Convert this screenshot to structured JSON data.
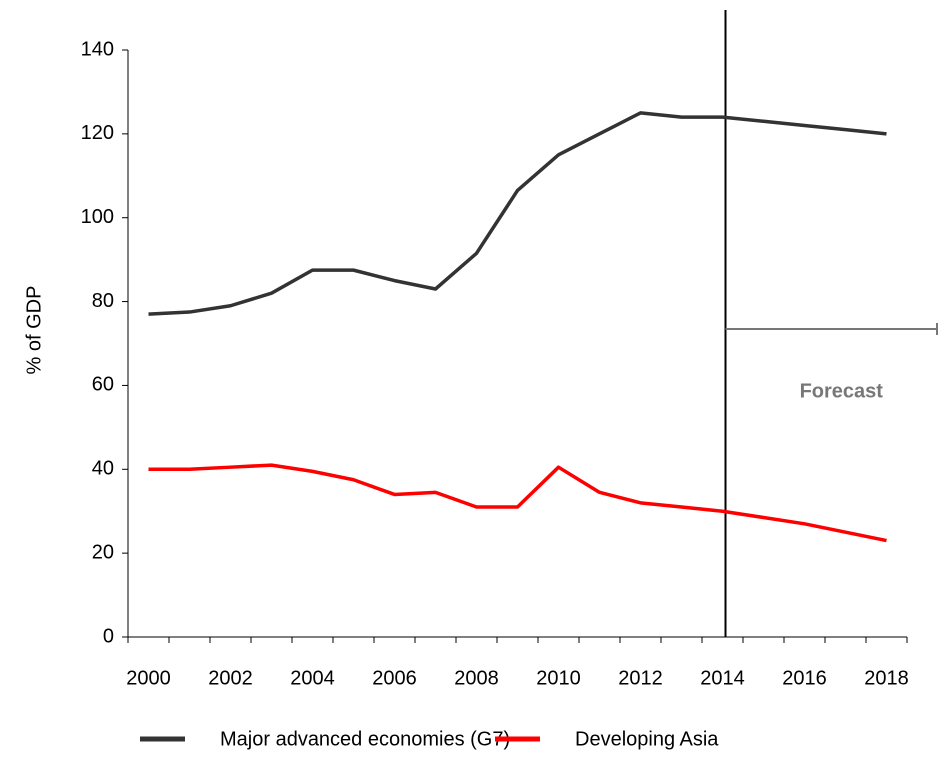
{
  "chart_data": {
    "type": "line",
    "y_label": "% of GDP",
    "annotation": "Forecast",
    "forecast_from": "2014",
    "categories": [
      "2000",
      null,
      "2002",
      null,
      "2004",
      null,
      "2006",
      null,
      "2008",
      null,
      "2010",
      null,
      "2012",
      null,
      "2014",
      null,
      "2016",
      null,
      "2018"
    ],
    "series": [
      {
        "name": "Major advanced economies (G7)",
        "color": "#333333",
        "values": [
          77,
          77.5,
          79,
          82,
          87.5,
          87.5,
          85,
          83,
          91.5,
          106.5,
          115,
          120,
          125,
          124,
          124,
          123,
          122,
          121,
          120
        ]
      },
      {
        "name": "Developing Asia",
        "color": "#ff0000",
        "values": [
          40,
          40,
          40.5,
          41,
          39.5,
          37.5,
          34,
          34.5,
          31,
          31,
          40.5,
          34.5,
          32,
          31,
          30,
          28.5,
          27,
          25,
          23
        ]
      }
    ],
    "ylim": [
      0,
      140
    ],
    "yticks": [
      0,
      20,
      40,
      60,
      80,
      100,
      120,
      140
    ]
  }
}
